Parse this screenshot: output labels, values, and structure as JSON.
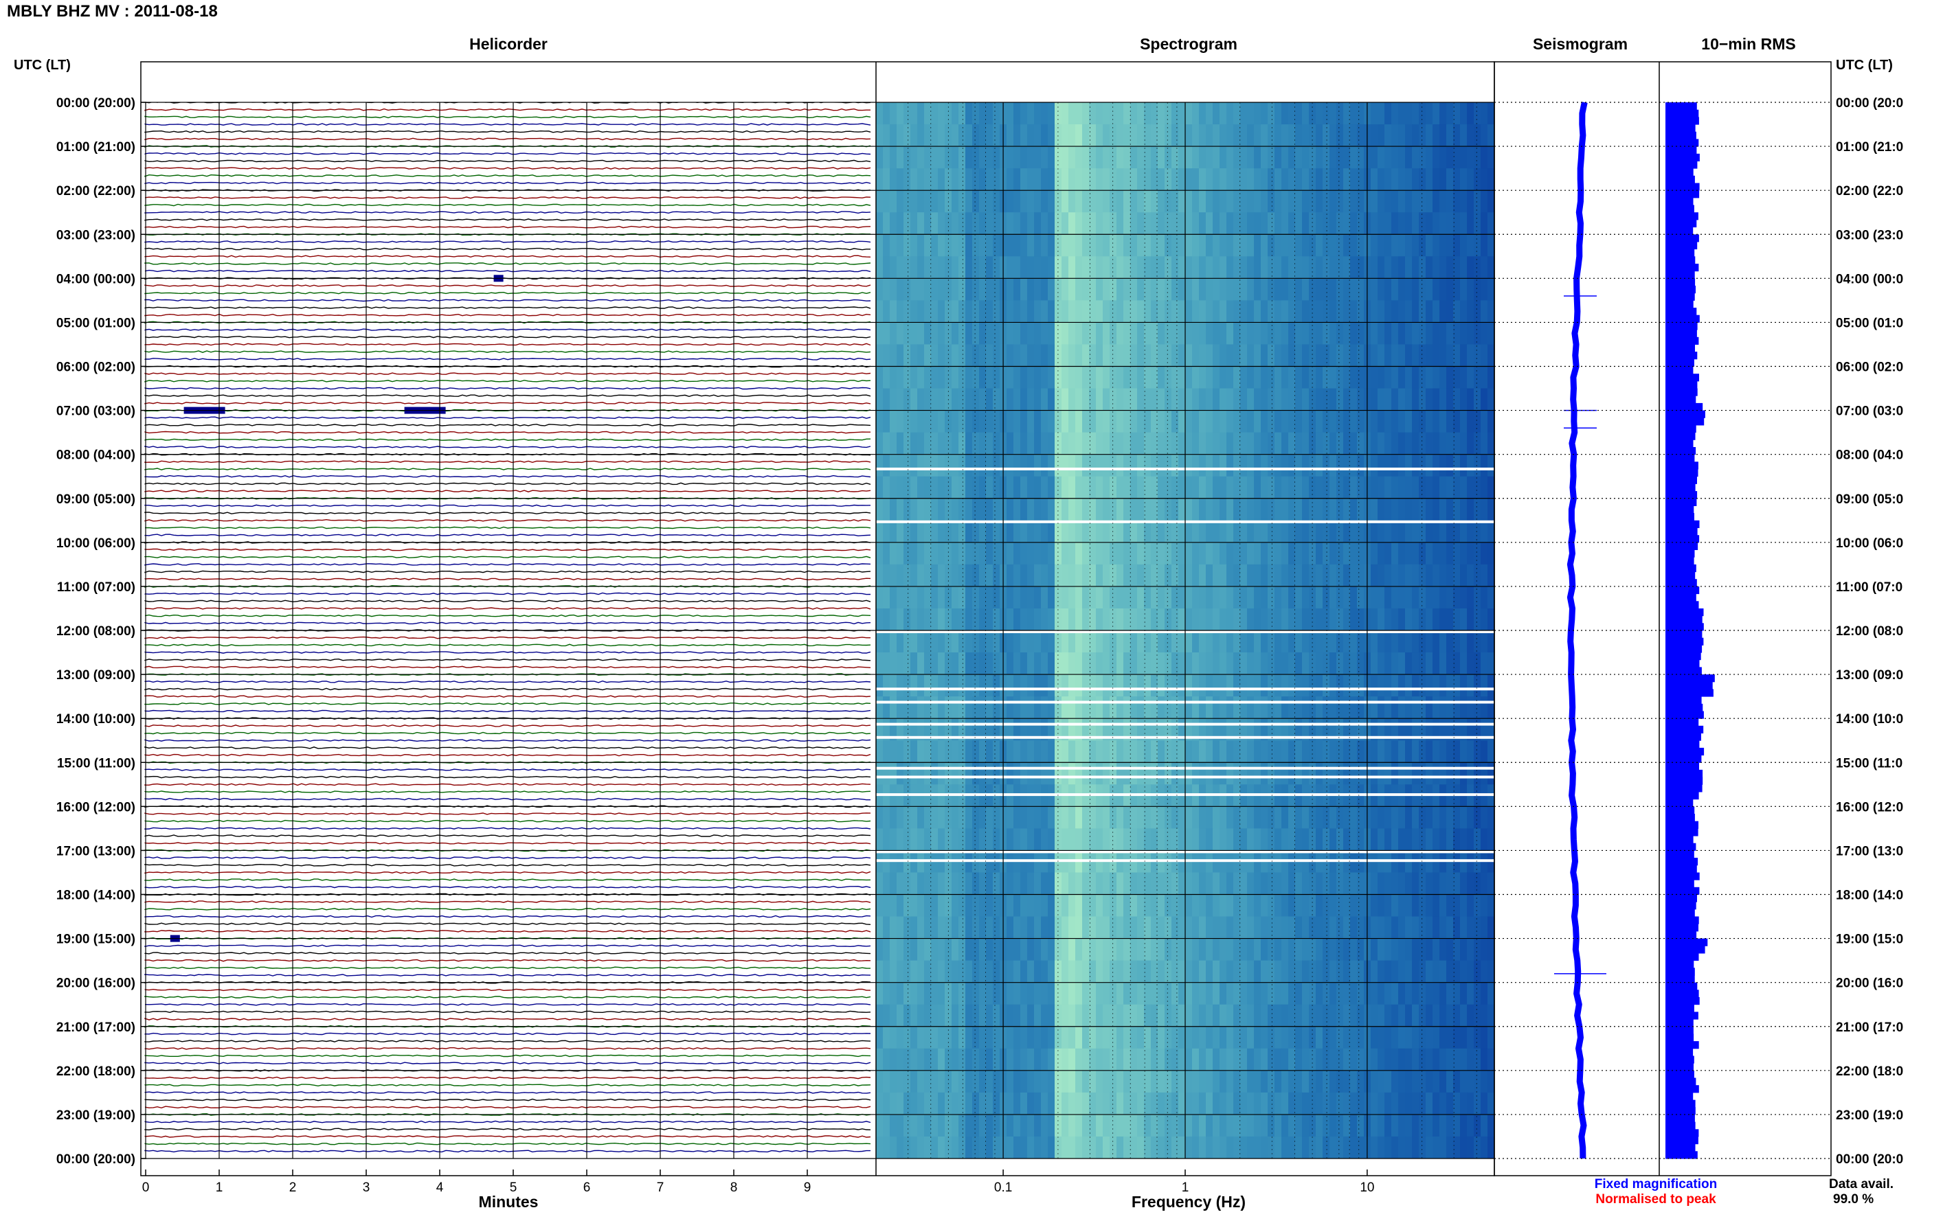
{
  "header": {
    "title": "MBLY BHZ MV : 2011-08-18"
  },
  "panels": {
    "helicorder": "Helicorder",
    "spectrogram": "Spectrogram",
    "seismogram": "Seismogram",
    "rms": "10−min RMS"
  },
  "axes": {
    "left_title": "UTC (LT)",
    "right_title": "UTC (LT)",
    "minutes_label": "Minutes",
    "frequency_label": "Frequency (Hz)",
    "minute_ticks": [
      "0",
      "1",
      "2",
      "3",
      "4",
      "5",
      "6",
      "7",
      "8",
      "9"
    ],
    "frequency_ticks": [
      "0.1",
      "1",
      "10"
    ],
    "hour_labels": [
      "00:00 (20:00)",
      "01:00 (21:00)",
      "02:00 (22:00)",
      "03:00 (23:00)",
      "04:00 (00:00)",
      "05:00 (01:00)",
      "06:00 (02:00)",
      "07:00 (03:00)",
      "08:00 (04:00)",
      "09:00 (05:00)",
      "10:00 (06:00)",
      "11:00 (07:00)",
      "12:00 (08:00)",
      "13:00 (09:00)",
      "14:00 (10:00)",
      "15:00 (11:00)",
      "16:00 (12:00)",
      "17:00 (13:00)",
      "18:00 (14:00)",
      "19:00 (15:00)",
      "20:00 (16:00)",
      "21:00 (17:00)",
      "22:00 (18:00)",
      "23:00 (19:00)",
      "00:00 (20:00)"
    ],
    "right_hour_labels": [
      "00:00 (20:0",
      "01:00 (21:0",
      "02:00 (22:0",
      "03:00 (23:0",
      "04:00 (00:0",
      "05:00 (01:0",
      "06:00 (02:0",
      "07:00 (03:0",
      "08:00 (04:0",
      "09:00 (05:0",
      "10:00 (06:0",
      "11:00 (07:0",
      "12:00 (08:0",
      "13:00 (09:0",
      "14:00 (10:0",
      "15:00 (11:0",
      "16:00 (12:0",
      "17:00 (13:0",
      "18:00 (14:0",
      "19:00 (15:0",
      "20:00 (16:0",
      "21:00 (17:0",
      "22:00 (18:0",
      "23:00 (19:0",
      "00:00 (20:0"
    ]
  },
  "legend": {
    "fixed": "Fixed magnification",
    "normalised": "Normalised to peak",
    "fixed_color": "#0000ff",
    "normalised_color": "#ff0000"
  },
  "availability": {
    "label": "Data avail.",
    "value": "99.0 %"
  },
  "colors": {
    "trace_cycle": [
      "#000000",
      "#8b0000",
      "#006400",
      "#00008b"
    ],
    "seismogram": "#0000ff",
    "rms": "#0000ff",
    "grid": "#000000"
  },
  "chart_data": [
    {
      "type": "line",
      "name": "helicorder",
      "title": "Helicorder",
      "xlabel": "Minutes",
      "xlim": [
        0,
        10
      ],
      "x_ticks": [
        0,
        1,
        2,
        3,
        4,
        5,
        6,
        7,
        8,
        9
      ],
      "hours": 24,
      "traces_per_hour": 6,
      "events": [
        {
          "hour": 4,
          "minute": 4.8,
          "note": "spike"
        },
        {
          "hour": 7,
          "minute": 0.8,
          "note": "burst"
        },
        {
          "hour": 7,
          "minute": 3.8,
          "note": "burst"
        },
        {
          "hour": 19,
          "minute": 0.4,
          "note": "spike"
        }
      ]
    },
    {
      "type": "heatmap",
      "name": "spectrogram",
      "title": "Spectrogram",
      "xlabel": "Frequency (Hz)",
      "xscale": "log",
      "xlim": [
        0.02,
        50
      ],
      "x_ticks": [
        0.1,
        1,
        10
      ]
    },
    {
      "type": "line",
      "name": "seismogram",
      "title": "Seismogram"
    },
    {
      "type": "bar",
      "name": "rms",
      "title": "10-min RMS",
      "bins_per_hour": 6
    }
  ]
}
